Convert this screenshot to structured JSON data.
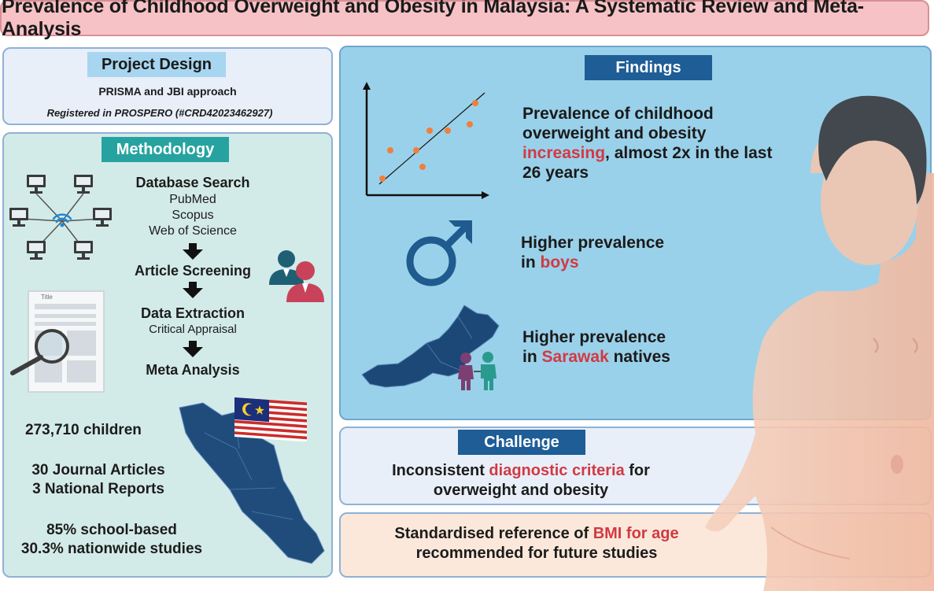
{
  "title": "Prevalence of Childhood Overweight and Obesity in Malaysia: A Systematic Review and Meta-Analysis",
  "project_design": {
    "header": "Project Design",
    "approach": "PRISMA and JBI approach",
    "registration": "Registered in PROSPERO (#CRD42023462927)"
  },
  "methodology": {
    "header": "Methodology",
    "database_search": "Database Search",
    "databases": [
      "PubMed",
      "Scopus",
      "Web of Science"
    ],
    "article_screening": "Article Screening",
    "data_extraction": "Data Extraction",
    "critical_appraisal": "Critical Appraisal",
    "meta_analysis": "Meta Analysis",
    "doc_title": "Title",
    "children": "273,710 children",
    "journal_articles": "30 Journal Articles",
    "national_reports": "3 National Reports",
    "school_based": "85% school-based",
    "nationwide": "30.3% nationwide studies"
  },
  "findings": {
    "header": "Findings",
    "f1_part1": "Prevalence of childhood overweight and obesity",
    "f1_highlight": "increasing",
    "f1_part2": ", almost 2x in the last 26 years",
    "f2_part1": "Higher prevalence",
    "f2_in": "in",
    "f2_highlight": "boys",
    "f3_part1": "Higher prevalence",
    "f3_in": "in",
    "f3_highlight": "Sarawak",
    "f3_part2": "natives"
  },
  "challenge": {
    "header": "Challenge",
    "part1": "Inconsistent",
    "highlight": "diagnostic criteria",
    "part2": "for",
    "line2": "overweight and obesity"
  },
  "recommendation": {
    "part1": "Standardised reference of",
    "highlight": "BMI for age",
    "line2": "recommended for future studies"
  },
  "colors": {
    "title_bg": "#f6c2c6",
    "header_teal": "#26a3a0",
    "header_navy": "#1e5d96",
    "findings_bg": "#9ad1ea",
    "highlight_red": "#d13a43",
    "map_navy": "#1f4c7a"
  },
  "icons": [
    "computer-network-icon",
    "wifi-icon",
    "people-icon",
    "document-magnifier-icon",
    "malaysia-flag-icon",
    "scatter-trend-icon",
    "male-symbol-icon",
    "children-icon",
    "peninsular-malaysia-map",
    "east-malaysia-map",
    "child-illustration"
  ]
}
